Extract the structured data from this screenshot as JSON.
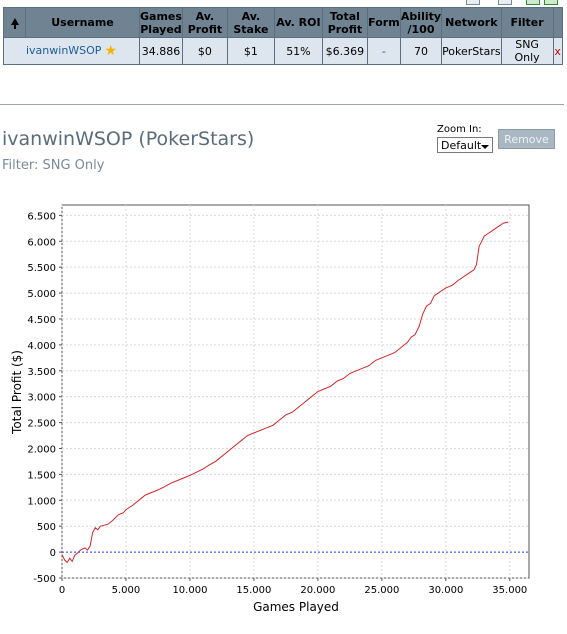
{
  "table": {
    "headers": {
      "username": "Username",
      "games_played": [
        "Games",
        "Played"
      ],
      "av_profit": [
        "Av.",
        "Profit"
      ],
      "av_stake": [
        "Av.",
        "Stake"
      ],
      "av_roi": "Av. ROI",
      "total_profit": [
        "Total",
        "Profit"
      ],
      "form": "Form",
      "ability": [
        "Ability",
        "/100"
      ],
      "network": "Network",
      "filter": "Filter"
    },
    "row": {
      "username": "ivanwinWSOP",
      "games_played": "34.886",
      "av_profit": "$0",
      "av_stake": "$1",
      "av_roi": "51%",
      "total_profit": "$6.369",
      "form": "-",
      "ability": "70",
      "network": "PokerStars",
      "filter": "SNG Only",
      "remove": "x"
    }
  },
  "player_title": "ivanwinWSOP (PokerStars)",
  "filter_text": "Filter: SNG Only",
  "zoom": {
    "label": "Zoom In:",
    "selected": "Default"
  },
  "remove_button": "Remove",
  "colors": {
    "line": "#d62728",
    "zero_line": "#3a3aff",
    "header_bg": "#6f8393",
    "row_bg": "#dde6ee"
  },
  "chart_data": {
    "type": "line",
    "xlabel": "Games Played",
    "ylabel": "Total Profit ($)",
    "xlim": [
      0,
      36500
    ],
    "ylim": [
      -500,
      6700
    ],
    "xticks": [
      0,
      5000,
      10000,
      15000,
      20000,
      25000,
      30000,
      35000
    ],
    "xtick_labels": [
      "0",
      "5.000",
      "10.000",
      "15.000",
      "20.000",
      "25.000",
      "30.000",
      "35.000"
    ],
    "yticks": [
      -500,
      0,
      500,
      1000,
      1500,
      2000,
      2500,
      3000,
      3500,
      4000,
      4500,
      5000,
      5500,
      6000,
      6500
    ],
    "ytick_labels": [
      "-500",
      "0",
      "500",
      "1.000",
      "1.500",
      "2.000",
      "2.500",
      "3.000",
      "3.500",
      "4.000",
      "4.500",
      "5.000",
      "5.500",
      "6.000",
      "6.500"
    ],
    "grid": true,
    "series": [
      {
        "x": [
          0,
          200,
          400,
          600,
          800,
          1000,
          1200,
          1500,
          1800,
          2000,
          2200,
          2400,
          2600,
          2800,
          3000,
          3300,
          3600,
          4000,
          4400,
          4800,
          5000,
          5500,
          6000,
          6500,
          7000,
          7500,
          8000,
          8500,
          9000,
          9500,
          10000,
          10500,
          11000,
          11500,
          12000,
          12500,
          13000,
          13500,
          14000,
          14500,
          15000,
          15500,
          16000,
          16500,
          17000,
          17500,
          18000,
          18500,
          19000,
          19500,
          20000,
          20500,
          21000,
          21500,
          22000,
          22500,
          23000,
          23500,
          24000,
          24500,
          25000,
          25500,
          26000,
          26500,
          27000,
          27300,
          27600,
          27900,
          28200,
          28500,
          28800,
          29100,
          29400,
          29700,
          30000,
          30500,
          31000,
          31300,
          31600,
          31900,
          32200,
          32400,
          32600,
          32800,
          33000,
          33300,
          33600,
          33900,
          34200,
          34500,
          34886
        ],
        "y": [
          -50,
          -150,
          -200,
          -120,
          -180,
          -60,
          -20,
          50,
          80,
          40,
          120,
          380,
          470,
          430,
          500,
          520,
          540,
          620,
          720,
          760,
          820,
          900,
          1000,
          1100,
          1150,
          1200,
          1260,
          1330,
          1380,
          1430,
          1480,
          1540,
          1600,
          1680,
          1750,
          1850,
          1950,
          2050,
          2150,
          2250,
          2300,
          2350,
          2400,
          2450,
          2550,
          2650,
          2700,
          2800,
          2900,
          3000,
          3100,
          3150,
          3200,
          3300,
          3350,
          3450,
          3500,
          3550,
          3600,
          3700,
          3750,
          3800,
          3850,
          3950,
          4050,
          4150,
          4200,
          4350,
          4600,
          4750,
          4800,
          4950,
          5000,
          5050,
          5100,
          5150,
          5250,
          5300,
          5350,
          5400,
          5450,
          5550,
          5900,
          6000,
          6100,
          6150,
          6200,
          6250,
          6300,
          6350,
          6369
        ]
      }
    ]
  }
}
